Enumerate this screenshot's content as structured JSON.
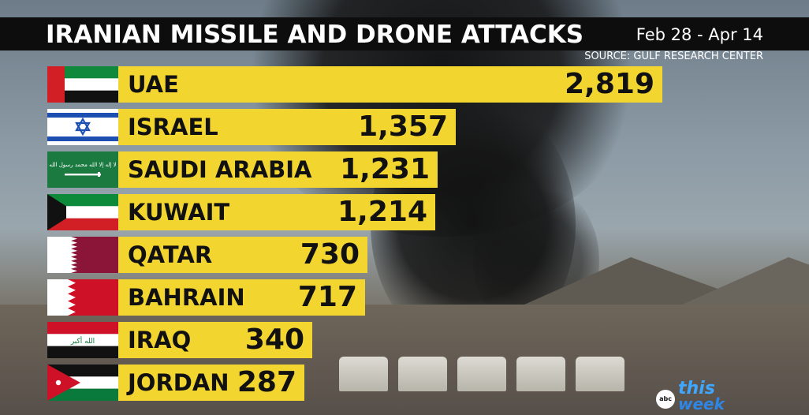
{
  "header": {
    "title": "IRANIAN MISSILE AND DRONE ATTACKS",
    "date_range": "Feb 28 - Apr 14",
    "source": "SOURCE: GULF RESEARCH CENTER"
  },
  "chart_data": {
    "type": "bar",
    "orientation": "horizontal",
    "title": "IRANIAN MISSILE AND DRONE ATTACKS",
    "subtitle": "Feb 28 - Apr 14",
    "categories": [
      "UAE",
      "ISRAEL",
      "SAUDI ARABIA",
      "KUWAIT",
      "QATAR",
      "BAHRAIN",
      "IRAQ",
      "JORDAN"
    ],
    "values": [
      2819,
      1357,
      1231,
      1214,
      730,
      717,
      340,
      287
    ],
    "value_labels": [
      "2,819",
      "1,357",
      "1,231",
      "1,214",
      "730",
      "717",
      "340",
      "287"
    ],
    "flag_icons": [
      "uae-flag-icon",
      "israel-flag-icon",
      "saudi-arabia-flag-icon",
      "kuwait-flag-icon",
      "qatar-flag-icon",
      "bahrain-flag-icon",
      "iraq-flag-icon",
      "jordan-flag-icon"
    ],
    "bar_color": "#f2d52f",
    "grid": false,
    "legend": "none"
  },
  "flag_script": {
    "saudi": "لا إله إلا الله محمد رسول الله",
    "iraq": "الله أكبر"
  },
  "logo": {
    "network": "abc",
    "line1": "this",
    "line2": "week"
  }
}
